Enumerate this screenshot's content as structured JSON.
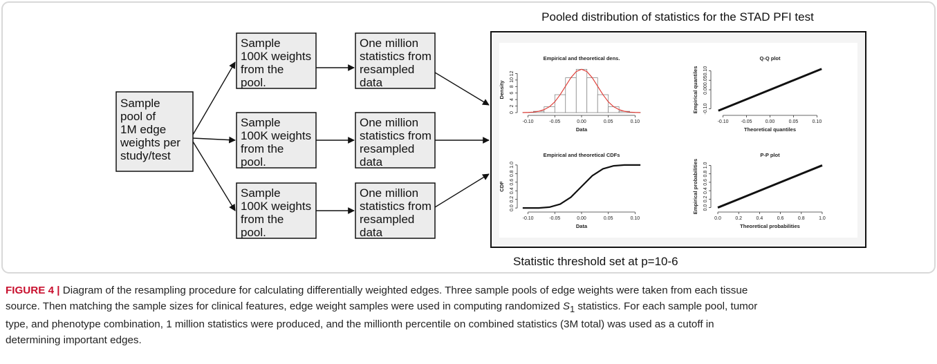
{
  "diagram": {
    "source": {
      "lines": [
        "Sample",
        "pool of",
        "1M edge",
        "weights per",
        "study/test"
      ]
    },
    "samplers": [
      {
        "lines": [
          "Sample",
          "100K weights",
          "from the",
          "pool."
        ]
      },
      {
        "lines": [
          "Sample",
          "100K weights",
          "from the",
          "pool."
        ]
      },
      {
        "lines": [
          "Sample",
          "100K weights",
          "from the",
          "pool."
        ]
      }
    ],
    "statistics": [
      {
        "lines": [
          "One million",
          "statistics from",
          "resampled",
          "data"
        ]
      },
      {
        "lines": [
          "One million",
          "statistics from",
          "resampled",
          "data"
        ]
      },
      {
        "lines": [
          "One million",
          "statistics from",
          "resampled",
          "data"
        ]
      }
    ],
    "panel_title": "Pooled distribution of statistics for the STAD PFI test",
    "threshold": "Statistic threshold set at p=10-6",
    "plots": [
      {
        "type": "histogram",
        "title": "Empirical and theoretical dens.",
        "xlabel": "Data",
        "ylabel": "Density",
        "bins": [
          -0.11,
          -0.09,
          -0.07,
          -0.05,
          -0.03,
          -0.01,
          0.01,
          0.03,
          0.05,
          0.07,
          0.09,
          0.11
        ],
        "values": [
          0.05,
          0.4,
          1.8,
          5.5,
          10.7,
          13.3,
          10.7,
          5.5,
          1.8,
          0.4,
          0.05
        ],
        "color": "#777777",
        "curve": {
          "color": "#e0403a",
          "x": [
            -0.11,
            -0.1,
            -0.09,
            -0.08,
            -0.07,
            -0.06,
            -0.05,
            -0.04,
            -0.03,
            -0.02,
            -0.01,
            0,
            0.01,
            0.02,
            0.03,
            0.04,
            0.05,
            0.06,
            0.07,
            0.08,
            0.09,
            0.1,
            0.11
          ],
          "y": [
            0,
            0.05,
            0.15,
            0.4,
            0.9,
            1.8,
            3.3,
            5.5,
            8.1,
            10.7,
            12.6,
            13.3,
            12.6,
            10.7,
            8.1,
            5.5,
            3.3,
            1.8,
            0.9,
            0.4,
            0.15,
            0.05,
            0
          ]
        },
        "xlim": [
          -0.115,
          0.115
        ],
        "xticks": [
          {
            "value": -0.1,
            "label": "-0.10"
          },
          {
            "value": -0.05,
            "label": "-0.05"
          },
          {
            "value": 0,
            "label": "0.00"
          },
          {
            "value": 0.05,
            "label": "0.05"
          },
          {
            "value": 0.1,
            "label": "0.10"
          }
        ],
        "ylim": [
          0,
          14
        ],
        "yticks": [
          0,
          2,
          4,
          6,
          8,
          10,
          12
        ]
      },
      {
        "type": "scatter",
        "title": "Q-Q plot",
        "xlabel": "Theoretical quantiles",
        "ylabel": "Empirical quantiles",
        "x": [
          -0.11,
          -0.08,
          -0.05,
          -0.02,
          0,
          0.02,
          0.05,
          0.08,
          0.11
        ],
        "y": [
          -0.11,
          -0.08,
          -0.05,
          -0.02,
          0,
          0.02,
          0.05,
          0.08,
          0.11
        ],
        "color": "#111111",
        "xlim": [
          -0.12,
          0.12
        ],
        "xticks": [
          {
            "value": -0.1,
            "label": "-0.10"
          },
          {
            "value": -0.05,
            "label": "-0.05"
          },
          {
            "value": 0,
            "label": "0.00"
          },
          {
            "value": 0.05,
            "label": "0.05"
          },
          {
            "value": 0.1,
            "label": "0.10"
          }
        ],
        "ylim": [
          -0.12,
          0.12
        ],
        "yticks": [
          {
            "value": -0.1,
            "label": "-0.10"
          },
          {
            "value": 0,
            "label": "0.00"
          },
          {
            "value": 0.05,
            "label": "0.05"
          },
          {
            "value": 0.1,
            "label": "0.10"
          }
        ]
      },
      {
        "type": "line",
        "title": "Empirical and theoretical CDFs",
        "xlabel": "Data",
        "ylabel": "CDF",
        "x": [
          -0.11,
          -0.1,
          -0.08,
          -0.06,
          -0.04,
          -0.02,
          0,
          0.02,
          0.04,
          0.06,
          0.08,
          0.1,
          0.11
        ],
        "y": [
          0,
          0,
          0,
          0.02,
          0.09,
          0.25,
          0.5,
          0.75,
          0.91,
          0.98,
          1,
          1,
          1
        ],
        "color": "#111111",
        "xlim": [
          -0.115,
          0.115
        ],
        "xticks": [
          {
            "value": -0.1,
            "label": "-0.10"
          },
          {
            "value": -0.05,
            "label": "-0.05"
          },
          {
            "value": 0,
            "label": "0.00"
          },
          {
            "value": 0.05,
            "label": "0.05"
          },
          {
            "value": 0.1,
            "label": "0.10"
          }
        ],
        "ylim": [
          -0.03,
          1.03
        ],
        "yticks": [
          {
            "value": 0,
            "label": "0.0"
          },
          0.2,
          0.4,
          0.6,
          0.8,
          {
            "value": 1,
            "label": "1.0"
          }
        ]
      },
      {
        "type": "scatter",
        "title": "P-P plot",
        "xlabel": "Theoretical probabilities",
        "ylabel": "Empirical probabilities",
        "x": [
          0,
          0.2,
          0.4,
          0.6,
          0.8,
          1
        ],
        "y": [
          0,
          0.2,
          0.4,
          0.6,
          0.8,
          1
        ],
        "color": "#111111",
        "xlim": [
          -0.04,
          1.04
        ],
        "xticks": [
          {
            "value": 0,
            "label": "0.0"
          },
          0.2,
          0.4,
          0.6,
          0.8,
          {
            "value": 1,
            "label": "1.0"
          }
        ],
        "ylim": [
          -0.04,
          1.04
        ],
        "yticks": [
          {
            "value": 0,
            "label": "0.0"
          },
          0.2,
          0.4,
          0.6,
          0.8,
          {
            "value": 1,
            "label": "1.0"
          }
        ]
      }
    ]
  },
  "caption": {
    "label": "FIGURE 4 |",
    "lines": [
      {
        "text": " Diagram of the resampling procedure for calculating differentially weighted edges. Three sample pools of edge weights were taken from each tissue"
      },
      {
        "text": "source. Then matching the sample sizes for clinical features, edge weight samples were used in computing randomized ",
        "symbol": "S",
        "subscript": "1",
        "after": " statistics. For each sample pool, tumor"
      },
      {
        "text": "type, and phenotype combination, 1 million statistics were produced, and the millionth percentile on combined statistics (3M total) was used as a cutoff in"
      },
      {
        "text": "determining important edges."
      }
    ]
  }
}
